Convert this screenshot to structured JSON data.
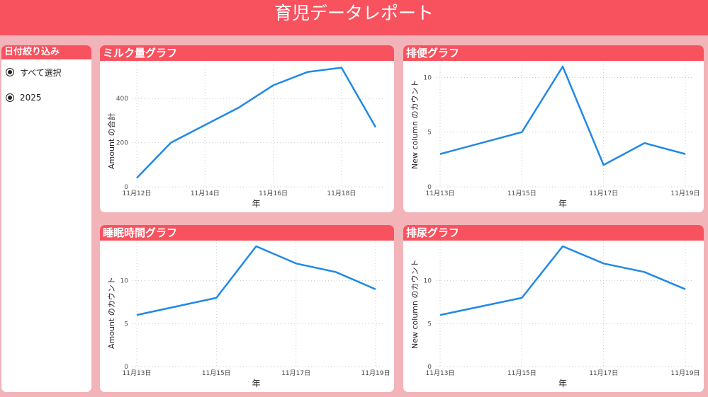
{
  "header": {
    "title": "育児データレポート"
  },
  "filter": {
    "title": "日付絞り込み",
    "options": [
      "すべて選択",
      "2025"
    ]
  },
  "charts": [
    {
      "id": "milk",
      "title": "ミルク量グラフ",
      "type": "line",
      "xlabel": "年",
      "ylabel": "Amount の合計",
      "x": [
        "11月12日",
        "11月13日",
        "11月14日",
        "11月15日",
        "11月16日",
        "11月17日",
        "11月18日",
        "11月19日"
      ],
      "values": [
        40,
        200,
        280,
        360,
        460,
        520,
        540,
        270
      ],
      "ylim": [
        0,
        545
      ],
      "yticks": [
        0,
        200,
        400
      ],
      "xticks": [
        "11月12日",
        "11月14日",
        "11月16日",
        "11月18日"
      ],
      "color": "#2089E6"
    },
    {
      "id": "stool",
      "title": "排便グラフ",
      "type": "line",
      "xlabel": "年",
      "ylabel": "New column のカウント",
      "x": [
        "11月13日",
        "11月14日",
        "11月15日",
        "11月16日",
        "11月17日",
        "11月18日",
        "11月19日"
      ],
      "values": [
        3,
        4,
        5,
        11,
        2,
        4,
        3
      ],
      "ylim": [
        0,
        11
      ],
      "yticks": [
        0,
        5,
        10
      ],
      "xticks": [
        "11月13日",
        "11月15日",
        "11月17日",
        "11月19日"
      ],
      "color": "#2089E6"
    },
    {
      "id": "sleep",
      "title": "睡眠時間グラフ",
      "type": "line",
      "xlabel": "年",
      "ylabel": "Amount のカウント",
      "x": [
        "11月13日",
        "11月14日",
        "11月15日",
        "11月16日",
        "11月17日",
        "11月18日",
        "11月19日"
      ],
      "values": [
        6,
        7,
        8,
        14,
        12,
        11,
        9
      ],
      "ylim": [
        0,
        14
      ],
      "yticks": [
        0,
        5,
        10
      ],
      "xticks": [
        "11月13日",
        "11月15日",
        "11月17日",
        "11月19日"
      ],
      "color": "#2089E6"
    },
    {
      "id": "urine",
      "title": "排尿グラフ",
      "type": "line",
      "xlabel": "年",
      "ylabel": "New column のカウント",
      "x": [
        "11月13日",
        "11月14日",
        "11月15日",
        "11月16日",
        "11月17日",
        "11月18日",
        "11月19日"
      ],
      "values": [
        6,
        7,
        8,
        14,
        12,
        11,
        9
      ],
      "ylim": [
        0,
        14
      ],
      "yticks": [
        0,
        5,
        10
      ],
      "xticks": [
        "11月13日",
        "11月15日",
        "11月17日",
        "11月19日"
      ],
      "color": "#2089E6"
    }
  ]
}
